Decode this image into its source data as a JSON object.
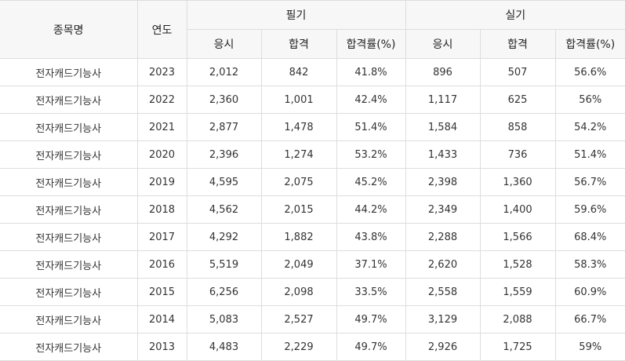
{
  "headers": {
    "name": "종목명",
    "year": "연도",
    "written": "필기",
    "practical": "실기",
    "applicants": "응시",
    "passed": "합격",
    "pass_rate": "합격률(%)"
  },
  "rows": [
    {
      "name": "전자캐드기능사",
      "year": "2023",
      "w_app": "2,012",
      "w_pass": "842",
      "w_rate": "41.8%",
      "p_app": "896",
      "p_pass": "507",
      "p_rate": "56.6%"
    },
    {
      "name": "전자캐드기능사",
      "year": "2022",
      "w_app": "2,360",
      "w_pass": "1,001",
      "w_rate": "42.4%",
      "p_app": "1,117",
      "p_pass": "625",
      "p_rate": "56%"
    },
    {
      "name": "전자캐드기능사",
      "year": "2021",
      "w_app": "2,877",
      "w_pass": "1,478",
      "w_rate": "51.4%",
      "p_app": "1,584",
      "p_pass": "858",
      "p_rate": "54.2%"
    },
    {
      "name": "전자캐드기능사",
      "year": "2020",
      "w_app": "2,396",
      "w_pass": "1,274",
      "w_rate": "53.2%",
      "p_app": "1,433",
      "p_pass": "736",
      "p_rate": "51.4%"
    },
    {
      "name": "전자캐드기능사",
      "year": "2019",
      "w_app": "4,595",
      "w_pass": "2,075",
      "w_rate": "45.2%",
      "p_app": "2,398",
      "p_pass": "1,360",
      "p_rate": "56.7%"
    },
    {
      "name": "전자캐드기능사",
      "year": "2018",
      "w_app": "4,562",
      "w_pass": "2,015",
      "w_rate": "44.2%",
      "p_app": "2,349",
      "p_pass": "1,400",
      "p_rate": "59.6%"
    },
    {
      "name": "전자캐드기능사",
      "year": "2017",
      "w_app": "4,292",
      "w_pass": "1,882",
      "w_rate": "43.8%",
      "p_app": "2,288",
      "p_pass": "1,566",
      "p_rate": "68.4%"
    },
    {
      "name": "전자캐드기능사",
      "year": "2016",
      "w_app": "5,519",
      "w_pass": "2,049",
      "w_rate": "37.1%",
      "p_app": "2,620",
      "p_pass": "1,528",
      "p_rate": "58.3%"
    },
    {
      "name": "전자캐드기능사",
      "year": "2015",
      "w_app": "6,256",
      "w_pass": "2,098",
      "w_rate": "33.5%",
      "p_app": "2,558",
      "p_pass": "1,559",
      "p_rate": "60.9%"
    },
    {
      "name": "전자캐드기능사",
      "year": "2014",
      "w_app": "5,083",
      "w_pass": "2,527",
      "w_rate": "49.7%",
      "p_app": "3,129",
      "p_pass": "2,088",
      "p_rate": "66.7%"
    },
    {
      "name": "전자캐드기능사",
      "year": "2013",
      "w_app": "4,483",
      "w_pass": "2,229",
      "w_rate": "49.7%",
      "p_app": "2,926",
      "p_pass": "1,725",
      "p_rate": "59%"
    }
  ]
}
